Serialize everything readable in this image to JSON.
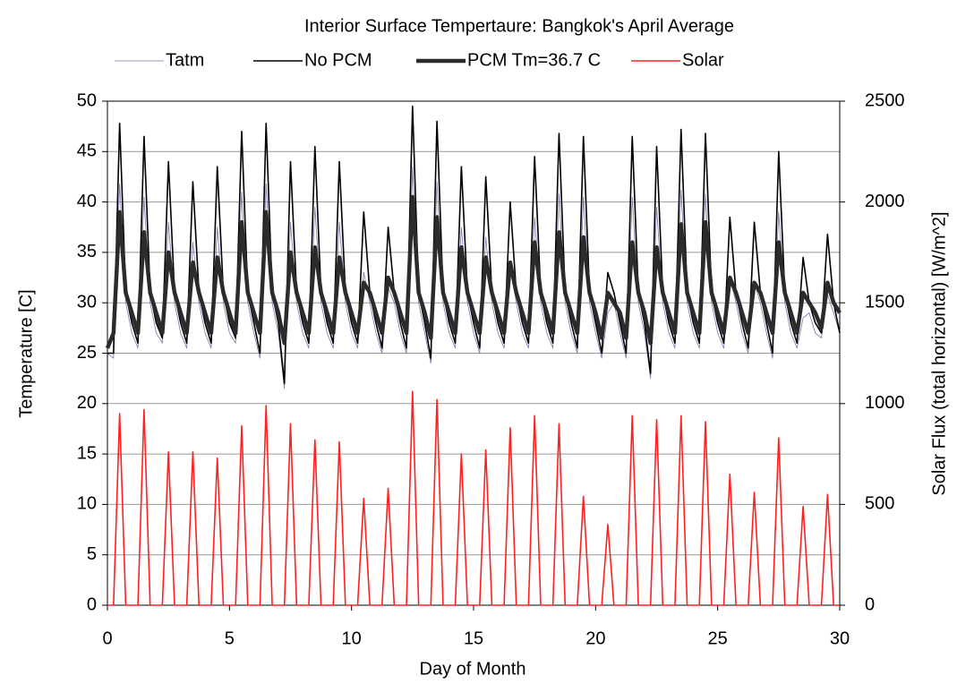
{
  "chart_data": {
    "type": "line",
    "title": "Interior Surface Tempertaure: Bangkok's April Average",
    "x_label": "Day of Month",
    "y_label": "Temperature [C]",
    "y2_label": "Solar Flux (total horizontal) [W/m^2]",
    "legend": "top",
    "x": [
      0,
      0.25,
      0.5,
      0.75,
      1,
      1.25,
      1.5,
      1.75,
      2,
      2.25,
      2.5,
      2.75,
      3,
      3.25,
      3.5,
      3.75,
      4,
      4.25,
      4.5,
      4.75,
      5,
      5.25,
      5.5,
      5.75,
      6,
      6.25,
      6.5,
      6.75,
      7,
      7.25,
      7.5,
      7.75,
      8,
      8.25,
      8.5,
      8.75,
      9,
      9.25,
      9.5,
      9.75,
      10,
      10.25,
      10.5,
      10.75,
      11,
      11.25,
      11.5,
      11.75,
      12,
      12.25,
      12.5,
      12.75,
      13,
      13.25,
      13.5,
      13.75,
      14,
      14.25,
      14.5,
      14.75,
      15,
      15.25,
      15.5,
      15.75,
      16,
      16.25,
      16.5,
      16.75,
      17,
      17.25,
      17.5,
      17.75,
      18,
      18.25,
      18.5,
      18.75,
      19,
      19.25,
      19.5,
      19.75,
      20,
      20.25,
      20.5,
      20.75,
      21,
      21.25,
      21.5,
      21.75,
      22,
      22.25,
      22.5,
      22.75,
      23,
      23.25,
      23.5,
      23.75,
      24,
      24.25,
      24.5,
      24.75,
      25,
      25.25,
      25.5,
      25.75,
      26,
      26.25,
      26.5,
      26.75,
      27,
      27.25,
      27.5,
      27.75,
      28,
      28.25,
      28.5,
      28.75,
      29,
      29.25,
      29.5,
      29.75,
      30
    ],
    "series": [
      {
        "name": "Tatm",
        "color": "#7777aa",
        "width": 0.8,
        "values": [
          25,
          24.5,
          41.8,
          30,
          27,
          25.5,
          40.5,
          30,
          27,
          26,
          38,
          30,
          27,
          25.5,
          36,
          30,
          27,
          25.5,
          37.5,
          30,
          27,
          26,
          41,
          30,
          27,
          24.5,
          41.8,
          30,
          27,
          21.5,
          38,
          30,
          27,
          25.5,
          39.5,
          30,
          27,
          25.5,
          38,
          30,
          27,
          25.5,
          33,
          30,
          27,
          25,
          31.5,
          30,
          27,
          25,
          43.5,
          30,
          27,
          24,
          42,
          30,
          27,
          25.5,
          37.5,
          30,
          27,
          25,
          36.5,
          30,
          27,
          25.5,
          34,
          30,
          27,
          25.5,
          38.5,
          30,
          27,
          25.5,
          40.8,
          30,
          27,
          25,
          40.5,
          30,
          27,
          24.5,
          29,
          30,
          27,
          24.5,
          40.5,
          30,
          27,
          22.5,
          39.5,
          30,
          27,
          25.5,
          41.2,
          30,
          27,
          25.5,
          40.8,
          30,
          27,
          25.5,
          32.5,
          30,
          27,
          25,
          32,
          30,
          27,
          24.5,
          39,
          30,
          27,
          25.5,
          28.5,
          29,
          27,
          26.5,
          30.8,
          29,
          27
        ]
      },
      {
        "name": "No PCM",
        "color": "#000000",
        "width": 1.6,
        "values": [
          25,
          25,
          47.8,
          31,
          28,
          26,
          46.5,
          31,
          28,
          26.5,
          44,
          31,
          28,
          26,
          42,
          31,
          28,
          26,
          43.5,
          31,
          28,
          26.5,
          47,
          31,
          28,
          25,
          47.8,
          31,
          28,
          22,
          44,
          31,
          28,
          26,
          45.5,
          31,
          28,
          26,
          44,
          31,
          28,
          26,
          39,
          31,
          28,
          25.5,
          37.5,
          31,
          28,
          25.5,
          49.5,
          31,
          28,
          24.5,
          48,
          31,
          28,
          26,
          43.5,
          31,
          28,
          25.5,
          42.5,
          31,
          28,
          26,
          40,
          31,
          28,
          26,
          44.5,
          31,
          28,
          26,
          46.8,
          31,
          28,
          25.5,
          46.5,
          31,
          28,
          25,
          33,
          31,
          28,
          25,
          46.5,
          31,
          28,
          23,
          45.5,
          31,
          28,
          26,
          47.2,
          31,
          28,
          26,
          46.8,
          31,
          28,
          26,
          38.5,
          31,
          28,
          25.5,
          38,
          31,
          28,
          25,
          45,
          31,
          28,
          26,
          34.5,
          30,
          28,
          27,
          36.8,
          30,
          27
        ]
      },
      {
        "name": "PCM Tm=36.7 C",
        "color": "#2b2b2b",
        "width": 4.5,
        "values": [
          25.5,
          27,
          39,
          31,
          29,
          27,
          37,
          31,
          29,
          27,
          35,
          31,
          29,
          27,
          34,
          31,
          29,
          27,
          34.5,
          31,
          29,
          27,
          38,
          31,
          29,
          27,
          39,
          31,
          29,
          26,
          35,
          31,
          29,
          27,
          35.5,
          31,
          29,
          27,
          34.5,
          31,
          29,
          27,
          32,
          31,
          29,
          27,
          32.5,
          31,
          29,
          27,
          40.5,
          31,
          29,
          26.5,
          38.5,
          31,
          29,
          27,
          35.5,
          31,
          29,
          27,
          34.5,
          31,
          29,
          27,
          34,
          31,
          29,
          27,
          36,
          31,
          29,
          27,
          37,
          31,
          29,
          27,
          36.5,
          31,
          29,
          26.5,
          31,
          30,
          29,
          26.5,
          36,
          31,
          29,
          26,
          35.5,
          31,
          29,
          27,
          37.8,
          31,
          29,
          27,
          38,
          31,
          29,
          27,
          32.5,
          31,
          29,
          27,
          32,
          31,
          29,
          27,
          36,
          31,
          29,
          27,
          31,
          30,
          29,
          27.5,
          32,
          30,
          29
        ]
      },
      {
        "name": "Solar",
        "color": "#ff2020",
        "width": 1.6,
        "axis": "y2",
        "values": [
          0,
          0,
          950,
          0,
          0,
          0,
          970,
          0,
          0,
          0,
          760,
          0,
          0,
          0,
          760,
          0,
          0,
          0,
          730,
          0,
          0,
          0,
          890,
          0,
          0,
          0,
          990,
          0,
          0,
          0,
          900,
          0,
          0,
          0,
          820,
          0,
          0,
          0,
          810,
          0,
          0,
          0,
          530,
          0,
          0,
          0,
          580,
          0,
          0,
          0,
          1060,
          0,
          0,
          0,
          1020,
          0,
          0,
          0,
          750,
          0,
          0,
          0,
          770,
          0,
          0,
          0,
          880,
          0,
          0,
          0,
          940,
          0,
          0,
          0,
          900,
          0,
          0,
          0,
          540,
          0,
          0,
          0,
          400,
          0,
          0,
          0,
          940,
          0,
          0,
          0,
          920,
          0,
          0,
          0,
          940,
          0,
          0,
          0,
          910,
          0,
          0,
          0,
          650,
          0,
          0,
          0,
          560,
          0,
          0,
          0,
          830,
          0,
          0,
          0,
          490,
          0,
          0,
          0,
          550,
          0,
          0
        ]
      }
    ],
    "xlim": [
      0,
      30
    ],
    "xticks": [
      0,
      5,
      10,
      15,
      20,
      25,
      30
    ],
    "ylim": [
      0,
      50
    ],
    "yticks": [
      0,
      5,
      10,
      15,
      20,
      25,
      30,
      35,
      40,
      45,
      50
    ],
    "y2lim": [
      0,
      2500
    ],
    "y2ticks": [
      0,
      500,
      1000,
      1500,
      2000,
      2500
    ],
    "grid": true
  }
}
